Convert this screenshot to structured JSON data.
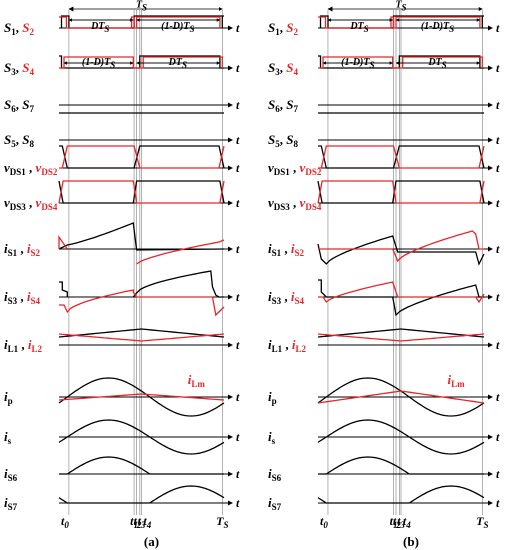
{
  "colors": {
    "black": "#000000",
    "red": "#e8262a",
    "grid": "#7f7f7f"
  },
  "axis_letter": "t",
  "rows": [
    {
      "id": "s12",
      "p1": "S",
      "p1s": "1",
      "sep": ", ",
      "p2": "S",
      "p2s": "2",
      "p1color": "black",
      "p2color": "red"
    },
    {
      "id": "s34",
      "p1": "S",
      "p1s": "3",
      "sep": ", ",
      "p2": "S",
      "p2s": "4",
      "p1color": "black",
      "p2color": "red"
    },
    {
      "id": "s67",
      "p1": "S",
      "p1s": "6",
      "sep": ", ",
      "p2": "S",
      "p2s": "7",
      "p1color": "black",
      "p2color": "black"
    },
    {
      "id": "s58",
      "p1": "S",
      "p1s": "5",
      "sep": ", ",
      "p2": "S",
      "p2s": "8",
      "p1color": "black",
      "p2color": "black"
    },
    {
      "id": "vds12",
      "p1": "v",
      "p1s": "DS1",
      "sep": " , ",
      "p2": "v",
      "p2s": "DS2",
      "p1color": "black",
      "p2color": "red"
    },
    {
      "id": "vds34",
      "p1": "v",
      "p1s": "DS3",
      "sep": " , ",
      "p2": "v",
      "p2s": "DS4",
      "p1color": "black",
      "p2color": "red"
    },
    {
      "id": "is12",
      "p1": "i",
      "p1s": "S1",
      "sep": " , ",
      "p2": "i",
      "p2s": "S2",
      "p1color": "black",
      "p2color": "red"
    },
    {
      "id": "is34",
      "p1": "i",
      "p1s": "S3",
      "sep": " , ",
      "p2": "i",
      "p2s": "S4",
      "p1color": "black",
      "p2color": "red"
    },
    {
      "id": "il12",
      "p1": "i",
      "p1s": "L1",
      "sep": " , ",
      "p2": "i",
      "p2s": "L2",
      "p1color": "black",
      "p2color": "red"
    },
    {
      "id": "ip",
      "p1": "i",
      "p1s": "p",
      "sep": "",
      "p2": "",
      "p2s": "",
      "p1color": "black",
      "p2color": "black"
    },
    {
      "id": "is",
      "p1": "i",
      "p1s": "s",
      "sep": "",
      "p2": "",
      "p2s": "",
      "p1color": "black",
      "p2color": "black"
    },
    {
      "id": "is6",
      "p1": "i",
      "p1s": "S6",
      "sep": "",
      "p2": "",
      "p2s": "",
      "p1color": "black",
      "p2color": "black"
    },
    {
      "id": "is7",
      "p1": "i",
      "p1s": "S7",
      "sep": "",
      "p2": "",
      "p2s": "",
      "p1color": "black",
      "p2color": "black"
    }
  ],
  "annotations": {
    "period": "T",
    "period_sub": "S",
    "duty_on": "DT",
    "duty_on_sub": "S",
    "duty_off": "(1-D)T",
    "duty_off_sub": "S",
    "ilm": "i",
    "ilm_sub": "Lm"
  },
  "time_markers": [
    {
      "t": "t",
      "sub": "0"
    },
    {
      "t": "t",
      "sub": "1"
    },
    {
      "t": "t",
      "sub": "2"
    },
    {
      "t": "t",
      "sub": "3"
    },
    {
      "t": "t",
      "sub": "4"
    },
    {
      "t": "T",
      "sub": "S"
    }
  ],
  "panels": [
    {
      "id": "a",
      "caption": "(a)"
    },
    {
      "id": "b",
      "caption": "(b)"
    }
  ]
}
